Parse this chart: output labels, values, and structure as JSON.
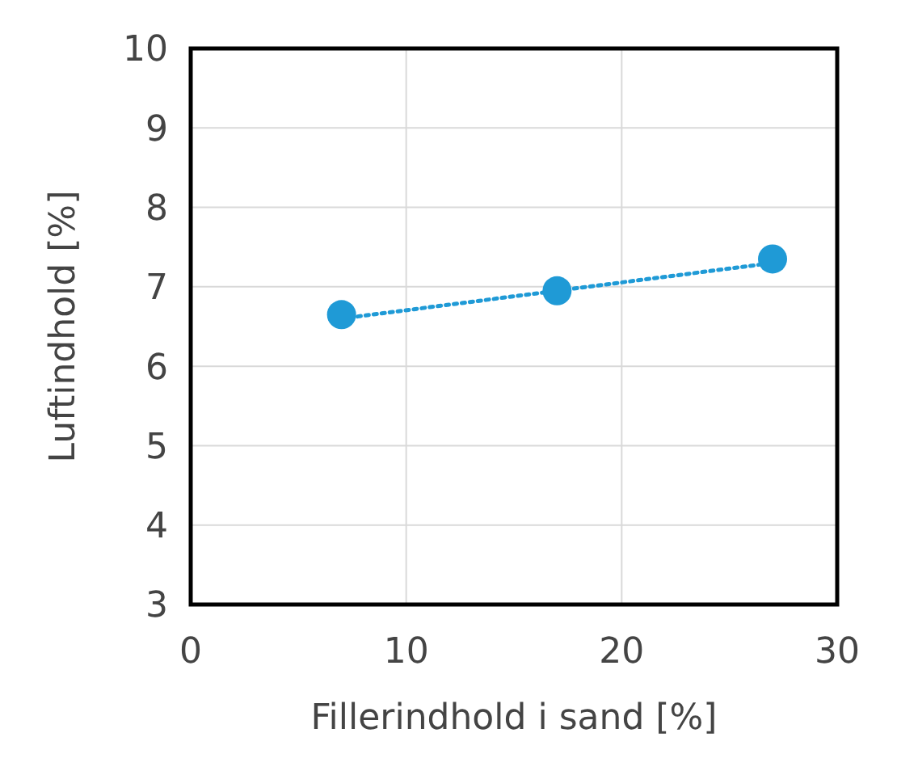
{
  "chart_data": {
    "type": "scatter",
    "xlabel": "Fillerindhold i sand [%]",
    "ylabel": "Luftindhold [%]",
    "xlim": [
      0,
      30
    ],
    "xticks": [
      0,
      10,
      20,
      30
    ],
    "ylim": [
      3,
      10
    ],
    "yticks": [
      3,
      4,
      5,
      6,
      7,
      8,
      9,
      10
    ],
    "grid": true,
    "marker": "circle",
    "series": [
      {
        "type": "line",
        "color": "#1f9ad6",
        "x": [
          7,
          27
        ],
        "values": [
          6.6,
          7.3
        ],
        "line_style": "dotted",
        "marker": "none"
      },
      {
        "color": "#1f9ad6",
        "x": [
          7,
          17,
          27
        ],
        "values": [
          6.65,
          6.95,
          7.35
        ]
      }
    ]
  }
}
